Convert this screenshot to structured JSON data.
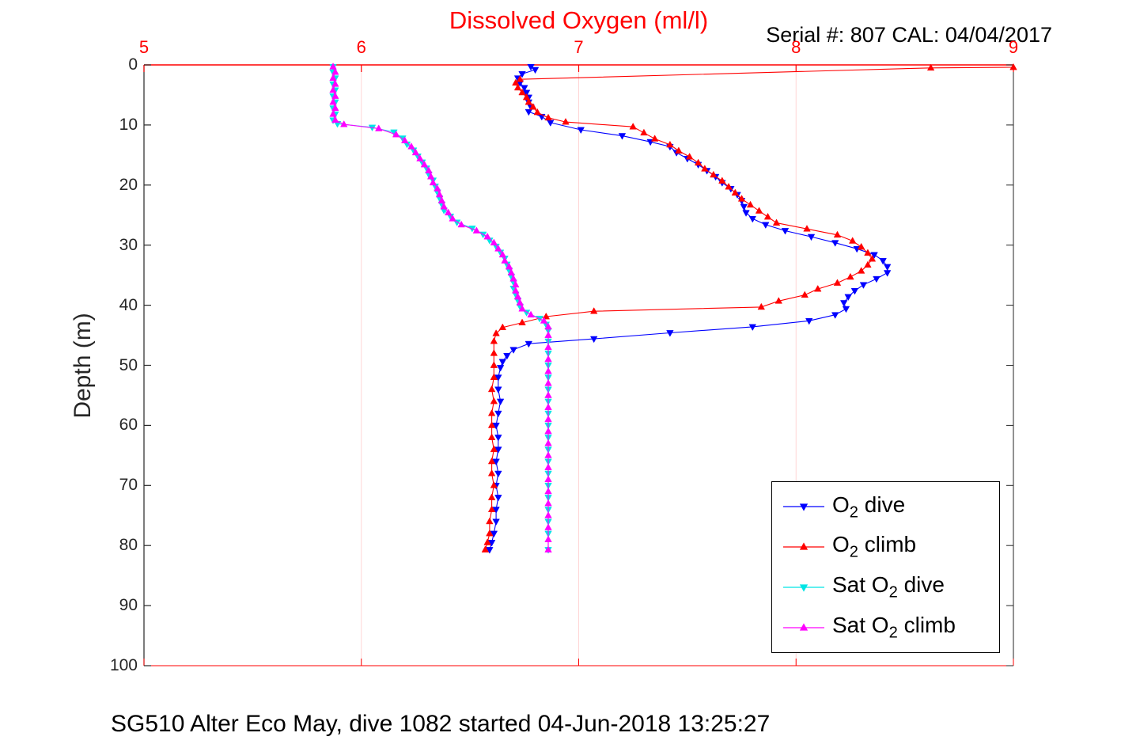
{
  "figure": {
    "serial_cal": "Serial #: 807  CAL: 04/04/2017",
    "caption": "SG510 Alter Eco May, dive 1082 started 04-Jun-2018 13:25:27"
  },
  "chart_data": {
    "type": "line",
    "title": "Dissolved Oxygen (ml/l)",
    "title_color": "#ff0000",
    "xlabel": "Dissolved Oxygen (ml/l)",
    "ylabel": "Depth (m)",
    "x_axis": {
      "position": "top",
      "range": [
        5,
        9
      ],
      "ticks": [
        5,
        6,
        7,
        8,
        9
      ],
      "color": "#ff0000",
      "grid": true
    },
    "y_axis": {
      "position": "left",
      "range": [
        0,
        100
      ],
      "ticks": [
        0,
        10,
        20,
        30,
        40,
        50,
        60,
        70,
        80,
        90,
        100
      ],
      "color": "#262626",
      "inverted": true,
      "grid": false
    },
    "legend": {
      "position": "bottom-right-inside"
    },
    "series": [
      {
        "name": "O2 dive",
        "label": {
          "pre": "O",
          "sub": "2",
          "post": " dive"
        },
        "color": "#0000ff",
        "marker": "down",
        "points": [
          [
            0.3,
            6.78
          ],
          [
            0.8,
            6.8
          ],
          [
            1.5,
            6.74
          ],
          [
            2.2,
            6.72
          ],
          [
            3.0,
            6.73
          ],
          [
            3.8,
            6.75
          ],
          [
            4.6,
            6.76
          ],
          [
            5.4,
            6.77
          ],
          [
            6.2,
            6.77
          ],
          [
            7.0,
            6.78
          ],
          [
            7.8,
            6.77
          ],
          [
            8.6,
            6.83
          ],
          [
            9.6,
            6.87
          ],
          [
            10.8,
            7.01
          ],
          [
            11.8,
            7.2
          ],
          [
            12.8,
            7.33
          ],
          [
            13.6,
            7.42
          ],
          [
            14.6,
            7.45
          ],
          [
            15.6,
            7.5
          ],
          [
            16.6,
            7.55
          ],
          [
            17.6,
            7.59
          ],
          [
            18.6,
            7.63
          ],
          [
            19.6,
            7.66
          ],
          [
            20.6,
            7.7
          ],
          [
            21.6,
            7.73
          ],
          [
            22.6,
            7.75
          ],
          [
            23.6,
            7.76
          ],
          [
            24.6,
            7.77
          ],
          [
            25.6,
            7.8
          ],
          [
            26.6,
            7.86
          ],
          [
            27.6,
            7.95
          ],
          [
            28.6,
            8.07
          ],
          [
            29.6,
            8.18
          ],
          [
            30.6,
            8.28
          ],
          [
            31.6,
            8.36
          ],
          [
            32.6,
            8.4
          ],
          [
            33.6,
            8.42
          ],
          [
            34.6,
            8.42
          ],
          [
            35.6,
            8.37
          ],
          [
            36.6,
            8.31
          ],
          [
            37.6,
            8.27
          ],
          [
            38.6,
            8.24
          ],
          [
            39.6,
            8.22
          ],
          [
            40.6,
            8.23
          ],
          [
            41.6,
            8.18
          ],
          [
            42.6,
            8.06
          ],
          [
            43.6,
            7.8
          ],
          [
            44.6,
            7.42
          ],
          [
            45.6,
            7.07
          ],
          [
            46.4,
            6.77
          ],
          [
            47.4,
            6.7
          ],
          [
            48.4,
            6.67
          ],
          [
            49.4,
            6.65
          ],
          [
            50.4,
            6.64
          ],
          [
            52,
            6.63
          ],
          [
            54,
            6.63
          ],
          [
            56,
            6.64
          ],
          [
            58,
            6.63
          ],
          [
            60,
            6.62
          ],
          [
            62,
            6.63
          ],
          [
            64,
            6.63
          ],
          [
            66,
            6.62
          ],
          [
            68,
            6.63
          ],
          [
            70,
            6.62
          ],
          [
            72,
            6.63
          ],
          [
            74,
            6.62
          ],
          [
            76,
            6.62
          ],
          [
            78,
            6.61
          ],
          [
            79.5,
            6.6
          ],
          [
            80.7,
            6.59
          ]
        ]
      },
      {
        "name": "O2 climb",
        "label": {
          "pre": "O",
          "sub": "2",
          "post": " climb"
        },
        "color": "#ff0000",
        "marker": "up",
        "points": [
          [
            0.4,
            9.0
          ],
          [
            0.5,
            8.62
          ],
          [
            2.4,
            6.73
          ],
          [
            3.0,
            6.71
          ],
          [
            3.8,
            6.72
          ],
          [
            4.6,
            6.74
          ],
          [
            5.4,
            6.76
          ],
          [
            6.2,
            6.77
          ],
          [
            7.0,
            6.79
          ],
          [
            7.9,
            6.81
          ],
          [
            8.8,
            6.86
          ],
          [
            9.5,
            6.94
          ],
          [
            10.3,
            7.25
          ],
          [
            11.3,
            7.3
          ],
          [
            12.3,
            7.35
          ],
          [
            13.3,
            7.42
          ],
          [
            14.3,
            7.46
          ],
          [
            15.3,
            7.51
          ],
          [
            16.3,
            7.55
          ],
          [
            17.3,
            7.58
          ],
          [
            18.3,
            7.62
          ],
          [
            19.3,
            7.66
          ],
          [
            20.3,
            7.69
          ],
          [
            21.3,
            7.72
          ],
          [
            22.3,
            7.75
          ],
          [
            23.3,
            7.79
          ],
          [
            24.3,
            7.83
          ],
          [
            25.3,
            7.87
          ],
          [
            26.3,
            7.91
          ],
          [
            27.3,
            8.05
          ],
          [
            28.3,
            8.19
          ],
          [
            29.3,
            8.26
          ],
          [
            30.3,
            8.3
          ],
          [
            31.3,
            8.33
          ],
          [
            32.3,
            8.35
          ],
          [
            33.3,
            8.33
          ],
          [
            34.3,
            8.3
          ],
          [
            35.3,
            8.25
          ],
          [
            36.3,
            8.19
          ],
          [
            37.3,
            8.1
          ],
          [
            38.3,
            8.04
          ],
          [
            39.3,
            7.92
          ],
          [
            40.3,
            7.84
          ],
          [
            41.0,
            7.07
          ],
          [
            41.9,
            6.85
          ],
          [
            42.9,
            6.74
          ],
          [
            43.7,
            6.65
          ],
          [
            44.7,
            6.62
          ],
          [
            46,
            6.61
          ],
          [
            48,
            6.61
          ],
          [
            50,
            6.61
          ],
          [
            52,
            6.61
          ],
          [
            54,
            6.6
          ],
          [
            56,
            6.61
          ],
          [
            58,
            6.6
          ],
          [
            60,
            6.6
          ],
          [
            62,
            6.6
          ],
          [
            64,
            6.61
          ],
          [
            66,
            6.6
          ],
          [
            68,
            6.6
          ],
          [
            70,
            6.61
          ],
          [
            72,
            6.6
          ],
          [
            74,
            6.6
          ],
          [
            76,
            6.59
          ],
          [
            78,
            6.59
          ],
          [
            79.5,
            6.58
          ],
          [
            80.7,
            6.57
          ]
        ]
      },
      {
        "name": "Sat O2 dive",
        "label": {
          "pre": "Sat O",
          "sub": "2",
          "post": " dive"
        },
        "color": "#00e5e5",
        "marker": "down",
        "points": [
          [
            0.3,
            5.87
          ],
          [
            1.2,
            5.87
          ],
          [
            2.2,
            5.88
          ],
          [
            3.2,
            5.87
          ],
          [
            4.2,
            5.88
          ],
          [
            5.2,
            5.87
          ],
          [
            6.2,
            5.88
          ],
          [
            7.2,
            5.87
          ],
          [
            8.2,
            5.88
          ],
          [
            9.2,
            5.87
          ],
          [
            9.8,
            5.89
          ],
          [
            10.4,
            6.05
          ],
          [
            11.2,
            6.15
          ],
          [
            12.2,
            6.19
          ],
          [
            13.2,
            6.21
          ],
          [
            14.2,
            6.24
          ],
          [
            15.2,
            6.26
          ],
          [
            16.2,
            6.28
          ],
          [
            17.2,
            6.3
          ],
          [
            18.2,
            6.31
          ],
          [
            19.2,
            6.33
          ],
          [
            20.2,
            6.34
          ],
          [
            21.2,
            6.35
          ],
          [
            22.2,
            6.36
          ],
          [
            23.2,
            6.37
          ],
          [
            24.2,
            6.38
          ],
          [
            25.2,
            6.41
          ],
          [
            26.2,
            6.44
          ],
          [
            27.2,
            6.51
          ],
          [
            28.2,
            6.56
          ],
          [
            29.2,
            6.59
          ],
          [
            30.2,
            6.62
          ],
          [
            31.2,
            6.64
          ],
          [
            32.2,
            6.66
          ],
          [
            33.2,
            6.67
          ],
          [
            34.2,
            6.68
          ],
          [
            35.2,
            6.69
          ],
          [
            36.2,
            6.7
          ],
          [
            37.2,
            6.7
          ],
          [
            38.2,
            6.71
          ],
          [
            39.2,
            6.72
          ],
          [
            40.2,
            6.73
          ],
          [
            41.2,
            6.76
          ],
          [
            42.2,
            6.82
          ],
          [
            43.2,
            6.85
          ],
          [
            44.2,
            6.86
          ],
          [
            46,
            6.86
          ],
          [
            48,
            6.86
          ],
          [
            50,
            6.86
          ],
          [
            52,
            6.86
          ],
          [
            54,
            6.86
          ],
          [
            56,
            6.86
          ],
          [
            58,
            6.86
          ],
          [
            60,
            6.86
          ],
          [
            62,
            6.86
          ],
          [
            64,
            6.86
          ],
          [
            66,
            6.86
          ],
          [
            68,
            6.86
          ],
          [
            70,
            6.86
          ],
          [
            72,
            6.86
          ],
          [
            74,
            6.86
          ],
          [
            76,
            6.86
          ],
          [
            78,
            6.86
          ],
          [
            80.7,
            6.86
          ]
        ]
      },
      {
        "name": "Sat O2 climb",
        "label": {
          "pre": "Sat O",
          "sub": "2",
          "post": " climb"
        },
        "color": "#ff00ff",
        "marker": "up",
        "points": [
          [
            0.3,
            5.87
          ],
          [
            1.2,
            5.88
          ],
          [
            2.2,
            5.87
          ],
          [
            3.2,
            5.88
          ],
          [
            4.2,
            5.87
          ],
          [
            5.2,
            5.88
          ],
          [
            6.2,
            5.87
          ],
          [
            7.2,
            5.88
          ],
          [
            8.2,
            5.87
          ],
          [
            9.2,
            5.88
          ],
          [
            9.9,
            5.92
          ],
          [
            10.6,
            6.08
          ],
          [
            11.6,
            6.16
          ],
          [
            12.6,
            6.2
          ],
          [
            13.6,
            6.23
          ],
          [
            14.6,
            6.25
          ],
          [
            15.6,
            6.27
          ],
          [
            16.6,
            6.29
          ],
          [
            17.6,
            6.31
          ],
          [
            18.6,
            6.32
          ],
          [
            19.6,
            6.33
          ],
          [
            20.6,
            6.35
          ],
          [
            21.6,
            6.36
          ],
          [
            22.6,
            6.37
          ],
          [
            23.6,
            6.38
          ],
          [
            24.6,
            6.4
          ],
          [
            25.6,
            6.42
          ],
          [
            26.6,
            6.46
          ],
          [
            27.6,
            6.53
          ],
          [
            28.6,
            6.58
          ],
          [
            29.6,
            6.61
          ],
          [
            30.6,
            6.63
          ],
          [
            31.6,
            6.65
          ],
          [
            32.6,
            6.66
          ],
          [
            33.6,
            6.68
          ],
          [
            34.6,
            6.69
          ],
          [
            35.6,
            6.7
          ],
          [
            36.6,
            6.71
          ],
          [
            37.6,
            6.71
          ],
          [
            38.6,
            6.72
          ],
          [
            39.6,
            6.73
          ],
          [
            40.6,
            6.74
          ],
          [
            41.6,
            6.78
          ],
          [
            42.6,
            6.84
          ],
          [
            43.6,
            6.86
          ],
          [
            45,
            6.86
          ],
          [
            47,
            6.86
          ],
          [
            49,
            6.86
          ],
          [
            51,
            6.86
          ],
          [
            53,
            6.86
          ],
          [
            55,
            6.86
          ],
          [
            57,
            6.86
          ],
          [
            59,
            6.86
          ],
          [
            61,
            6.86
          ],
          [
            63,
            6.86
          ],
          [
            65,
            6.86
          ],
          [
            67,
            6.86
          ],
          [
            69,
            6.86
          ],
          [
            71,
            6.86
          ],
          [
            73,
            6.86
          ],
          [
            75,
            6.86
          ],
          [
            77,
            6.86
          ],
          [
            79,
            6.86
          ],
          [
            80.7,
            6.86
          ]
        ]
      }
    ]
  }
}
